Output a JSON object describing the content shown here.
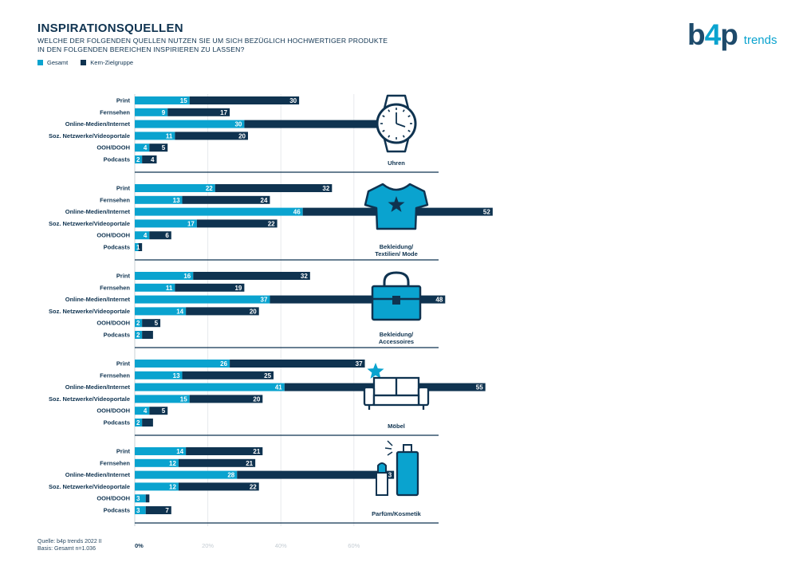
{
  "header": {
    "title": "INSPIRATIONSQUELLEN",
    "subtitle": "WELCHE DER FOLGENDEN QUELLEN NUTZEN SIE UM SICH BEZÜGLICH HOCHWERTIGER PRODUKTE IN DEN FOLGENDEN BEREICHEN INSPIRIEREN ZU LASSEN?"
  },
  "legend": {
    "gesamt": "Gesamt",
    "kern": "Kern-Zielgruppe"
  },
  "logo": {
    "main_b": "b",
    "main_4": "4",
    "main_p": "p",
    "sub": "trends"
  },
  "colors": {
    "gesamt": "#0aa3cf",
    "kern": "#0f3350",
    "divider": "#0f3350"
  },
  "footer": {
    "source": "Quelle: b4p trends 2022 II",
    "basis": "Basis: Gesamt n=1.036"
  },
  "chart_data": {
    "type": "bar",
    "orientation": "horizontal",
    "stacked": true,
    "categories": [
      "Print",
      "Fernsehen",
      "Online-Medien/Internet",
      "Soz. Netzwerke/Videoportale",
      "OOH/DOOH",
      "Podcasts"
    ],
    "series_names": [
      "Gesamt",
      "Kern-Zielgruppe"
    ],
    "x_ticks": [
      "0%",
      "20%",
      "40%",
      "60%"
    ],
    "xlim": [
      0,
      80
    ],
    "grid": true,
    "legend_position": "top-left",
    "panels": [
      {
        "label": "Uhren",
        "icon": "watch-icon",
        "gesamt": [
          15,
          9,
          30,
          11,
          4,
          2
        ],
        "kern": [
          30,
          17,
          45,
          20,
          5,
          4
        ]
      },
      {
        "label": "Bekleidung/ Textilien/ Mode",
        "icon": "tshirt-icon",
        "gesamt": [
          22,
          13,
          46,
          17,
          4,
          1
        ],
        "kern": [
          32,
          24,
          52,
          22,
          6,
          1
        ]
      },
      {
        "label": "Bekleidung/ Accessoires",
        "icon": "handbag-icon",
        "gesamt": [
          16,
          11,
          37,
          14,
          2,
          2
        ],
        "kern": [
          32,
          19,
          48,
          20,
          5,
          3
        ]
      },
      {
        "label": "Möbel",
        "icon": "sofa-icon",
        "gesamt": [
          26,
          13,
          41,
          15,
          4,
          2
        ],
        "kern": [
          37,
          25,
          55,
          20,
          5,
          3
        ]
      },
      {
        "label": "Parfüm/Kosmetik",
        "icon": "perfume-lipstick-icon",
        "gesamt": [
          14,
          12,
          28,
          12,
          3,
          3
        ],
        "kern": [
          21,
          21,
          43,
          22,
          1,
          7
        ]
      }
    ]
  }
}
